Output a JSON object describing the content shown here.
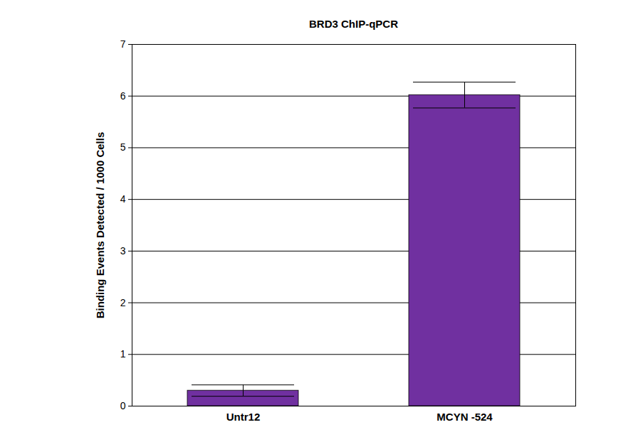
{
  "chart_data": {
    "type": "bar",
    "title": "BRD3 ChIP-qPCR",
    "y_label": "Binding Events Detected / 1000 Cells",
    "categories": [
      "Untr12",
      "MCYN -524"
    ],
    "values": [
      0.3,
      6.02
    ],
    "errors": [
      0.11,
      0.25
    ],
    "color": "#7030a0",
    "ylim": [
      0,
      7
    ],
    "yticks": [
      0,
      1,
      2,
      3,
      4,
      5,
      6,
      7
    ],
    "grid": true
  }
}
